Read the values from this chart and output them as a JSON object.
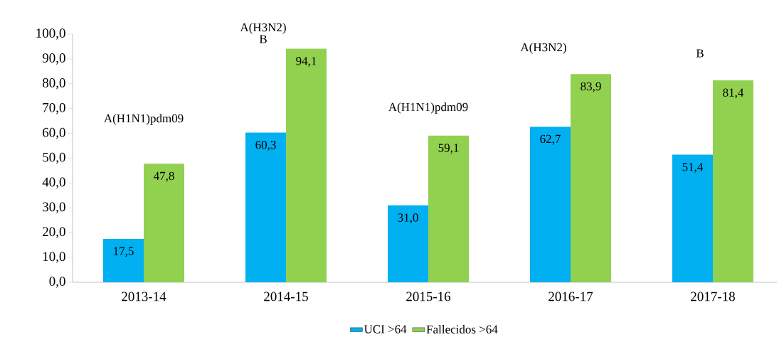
{
  "chart_data": {
    "type": "bar",
    "categories": [
      "2013-14",
      "2014-15",
      "2015-16",
      "2016-17",
      "2017-18"
    ],
    "series": [
      {
        "name": "UCI >64",
        "color": "#00b0f0",
        "values": [
          17.5,
          60.3,
          31.0,
          62.7,
          51.4
        ],
        "value_labels": [
          "17,5",
          "60,3",
          "31,0",
          "62,7",
          "51,4"
        ]
      },
      {
        "name": "Fallecidos >64",
        "color": "#92d050",
        "values": [
          47.8,
          94.1,
          59.1,
          83.9,
          81.4
        ],
        "value_labels": [
          "47,8",
          "94,1",
          "59,1",
          "83,9",
          "81,4"
        ]
      }
    ],
    "ylim": [
      0,
      100
    ],
    "yticks": [
      {
        "value": 0,
        "label": "0,0"
      },
      {
        "value": 10,
        "label": "10,0"
      },
      {
        "value": 20,
        "label": "20,0"
      },
      {
        "value": 30,
        "label": "30,0"
      },
      {
        "value": 40,
        "label": "40,0"
      },
      {
        "value": 50,
        "label": "50,0"
      },
      {
        "value": 60,
        "label": "60,0"
      },
      {
        "value": 70,
        "label": "70,0"
      },
      {
        "value": 80,
        "label": "80,0"
      },
      {
        "value": 90,
        "label": "90,0"
      },
      {
        "value": 100,
        "label": "100,0"
      }
    ],
    "annotations": [
      "A(H1N1)pdm09",
      "A(H3N2)",
      "B",
      "A(H1N1)pdm09",
      "A(H3N2)",
      "B"
    ],
    "legend": "bottom"
  }
}
